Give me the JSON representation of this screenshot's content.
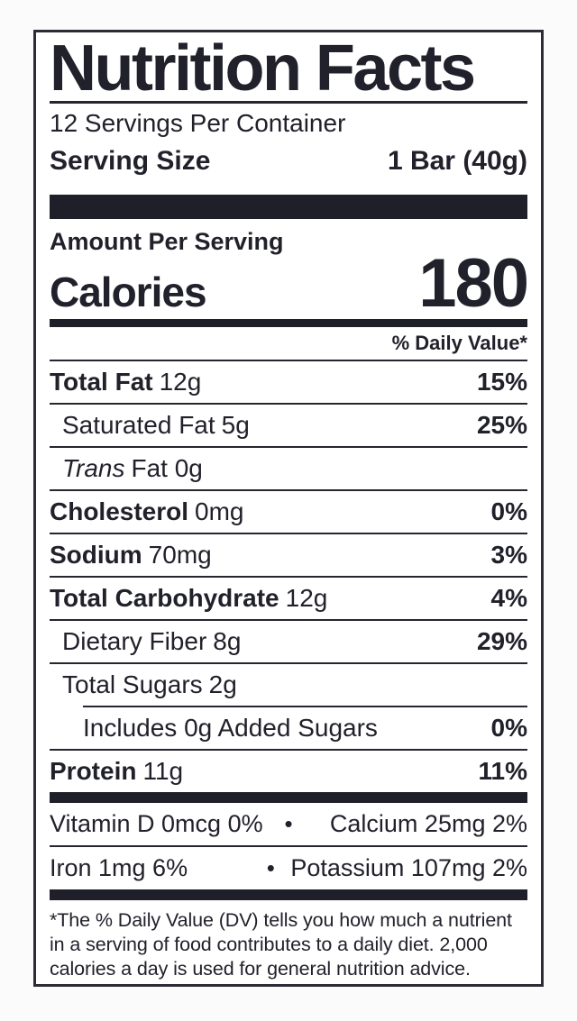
{
  "label": {
    "title": "Nutrition Facts",
    "servings_per_container": "12 Servings Per Container",
    "serving_size_label": "Serving Size",
    "serving_size_value": "1 Bar (40g)",
    "amount_per_serving": "Amount Per Serving",
    "calories_label": "Calories",
    "calories_value": "180",
    "daily_value_header": "% Daily Value*",
    "nutrients": [
      {
        "name": "Total Fat",
        "amount": "12g",
        "dv": "15%"
      },
      {
        "name": "Saturated Fat",
        "amount": "5g",
        "dv": "25%"
      },
      {
        "name": "Trans",
        "amount": "Fat 0g",
        "dv": ""
      },
      {
        "name": "Cholesterol",
        "amount": "0mg",
        "dv": "0%"
      },
      {
        "name": "Sodium",
        "amount": "70mg",
        "dv": "3%"
      },
      {
        "name": "Total Carbohydrate",
        "amount": "12g",
        "dv": "4%"
      },
      {
        "name": "Dietary Fiber",
        "amount": "8g",
        "dv": "29%"
      },
      {
        "name": "Total Sugars",
        "amount": "2g",
        "dv": ""
      },
      {
        "name": "Includes 0g Added Sugars",
        "amount": "",
        "dv": "0%"
      },
      {
        "name": "Protein",
        "amount": "11g",
        "dv": "11%"
      }
    ],
    "micronutrients": [
      {
        "left": "Vitamin D 0mcg 0%",
        "bullet": "•",
        "right": "Calcium 25mg 2%"
      },
      {
        "left": "Iron 1mg 6%",
        "bullet": "•",
        "right": "Potassium 107mg 2%"
      }
    ],
    "footnote": "*The % Daily Value (DV) tells you how much a nutrient in a serving of food contributes to a daily diet. 2,000 calories a day is used for general nutrition advice.",
    "colors": {
      "text": "#21212b",
      "bars": "#1f1f29",
      "border": "#2c2c36",
      "label_background": "#ffffff",
      "page_background": "#fbfbfb"
    }
  }
}
